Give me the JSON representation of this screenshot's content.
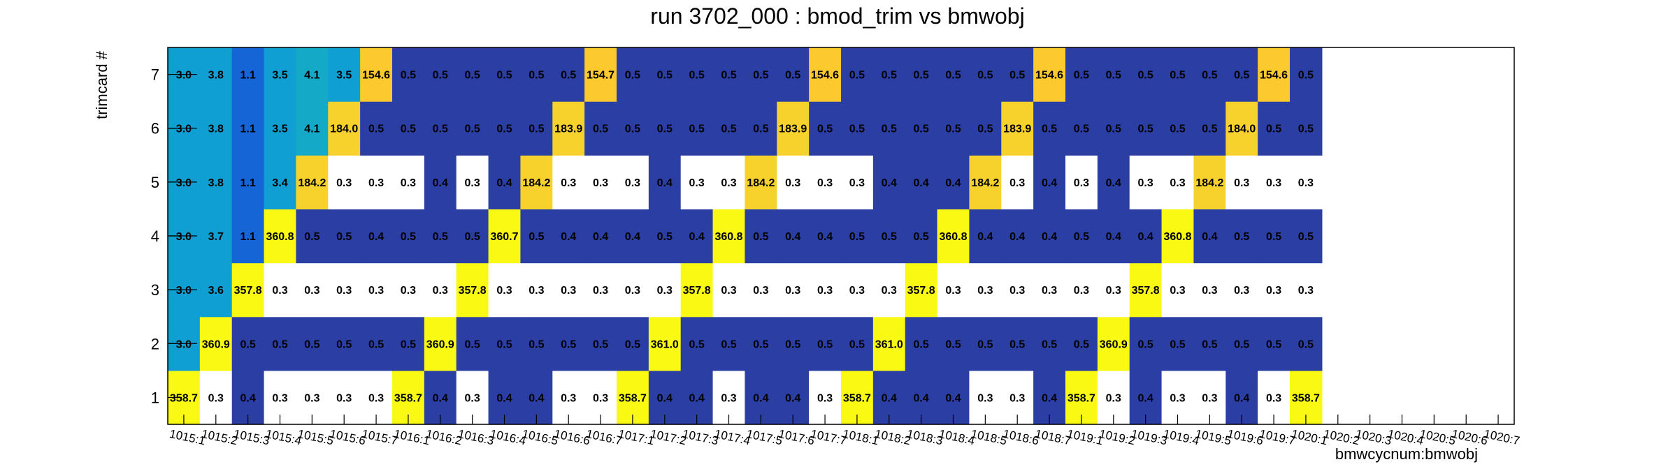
{
  "chart_data": {
    "type": "heatmap",
    "title": "run 3702_000 : bmod_trim vs bmwobj",
    "xlabel": "bmwcycnum:bmwobj",
    "ylabel": "trimcard #",
    "x_categories": [
      "1015:1",
      "1015:2",
      "1015:3",
      "1015:4",
      "1015:5",
      "1015:6",
      "1015:7",
      "1016:1",
      "1016:2",
      "1016:3",
      "1016:4",
      "1016:5",
      "1016:6",
      "1016:7",
      "1017:1",
      "1017:2",
      "1017:3",
      "1017:4",
      "1017:5",
      "1017:6",
      "1017:7",
      "1018:1",
      "1018:2",
      "1018:3",
      "1018:4",
      "1018:5",
      "1018:6",
      "1018:7",
      "1019:1",
      "1019:2",
      "1019:3",
      "1019:4",
      "1019:5",
      "1019:6",
      "1019:7",
      "1020:1",
      "1020:2",
      "1020:3",
      "1020:4",
      "1020:5",
      "1020:6",
      "1020:7"
    ],
    "y_categories": [
      "1",
      "2",
      "3",
      "4",
      "5",
      "6",
      "7"
    ],
    "rows": [
      {
        "y": "1",
        "values": [
          358.7,
          0.3,
          0.4,
          0.3,
          0.3,
          0.3,
          0.3,
          358.7,
          0.4,
          0.3,
          0.4,
          0.4,
          0.3,
          0.3,
          358.7,
          0.4,
          0.4,
          0.3,
          0.4,
          0.4,
          0.3,
          358.7,
          0.4,
          0.4,
          0.4,
          0.3,
          0.3,
          0.4,
          358.7,
          0.3,
          0.4,
          0.3,
          0.3,
          0.4,
          0.3,
          358.7,
          null,
          null,
          null,
          null,
          null,
          null
        ]
      },
      {
        "y": "2",
        "values": [
          3.0,
          360.9,
          0.5,
          0.5,
          0.5,
          0.5,
          0.5,
          0.5,
          360.9,
          0.5,
          0.5,
          0.5,
          0.5,
          0.5,
          0.5,
          361.0,
          0.5,
          0.5,
          0.5,
          0.5,
          0.5,
          0.5,
          361.0,
          0.5,
          0.5,
          0.5,
          0.5,
          0.5,
          0.5,
          360.9,
          0.5,
          0.5,
          0.5,
          0.5,
          0.5,
          0.5,
          null,
          null,
          null,
          null,
          null,
          null
        ]
      },
      {
        "y": "3",
        "values": [
          3.0,
          3.6,
          357.8,
          0.3,
          0.3,
          0.3,
          0.3,
          0.3,
          0.3,
          357.8,
          0.3,
          0.3,
          0.3,
          0.3,
          0.3,
          0.3,
          357.8,
          0.3,
          0.3,
          0.3,
          0.3,
          0.3,
          0.3,
          357.8,
          0.3,
          0.3,
          0.3,
          0.3,
          0.3,
          0.3,
          357.8,
          0.3,
          0.3,
          0.3,
          0.3,
          0.3,
          null,
          null,
          null,
          null,
          null,
          null
        ]
      },
      {
        "y": "4",
        "values": [
          3.0,
          3.7,
          1.1,
          360.8,
          0.5,
          0.5,
          0.4,
          0.5,
          0.5,
          0.5,
          360.7,
          0.5,
          0.4,
          0.4,
          0.4,
          0.5,
          0.4,
          360.8,
          0.5,
          0.4,
          0.4,
          0.5,
          0.5,
          0.5,
          360.8,
          0.4,
          0.4,
          0.4,
          0.5,
          0.4,
          0.4,
          360.8,
          0.4,
          0.5,
          0.5,
          0.5,
          null,
          null,
          null,
          null,
          null,
          null
        ]
      },
      {
        "y": "5",
        "values": [
          3.0,
          3.8,
          1.1,
          3.4,
          184.2,
          0.3,
          0.3,
          0.3,
          0.4,
          0.3,
          0.4,
          184.2,
          0.3,
          0.3,
          0.3,
          0.4,
          0.3,
          0.3,
          184.2,
          0.3,
          0.3,
          0.3,
          0.4,
          0.4,
          0.4,
          184.2,
          0.3,
          0.4,
          0.3,
          0.4,
          0.3,
          0.3,
          184.2,
          0.3,
          0.3,
          0.3,
          null,
          null,
          null,
          null,
          null,
          null
        ]
      },
      {
        "y": "6",
        "values": [
          3.0,
          3.8,
          1.1,
          3.5,
          4.1,
          184.0,
          0.5,
          0.5,
          0.5,
          0.5,
          0.5,
          0.5,
          183.9,
          0.5,
          0.5,
          0.5,
          0.5,
          0.5,
          0.5,
          183.9,
          0.5,
          0.5,
          0.5,
          0.5,
          0.5,
          0.5,
          183.9,
          0.5,
          0.5,
          0.5,
          0.5,
          0.5,
          0.5,
          184.0,
          0.5,
          0.5,
          null,
          null,
          null,
          null,
          null,
          null
        ]
      },
      {
        "y": "7",
        "values": [
          3.0,
          3.8,
          1.1,
          3.5,
          4.1,
          3.5,
          154.6,
          0.5,
          0.5,
          0.5,
          0.5,
          0.5,
          0.5,
          154.7,
          0.5,
          0.5,
          0.5,
          0.5,
          0.5,
          0.5,
          154.6,
          0.5,
          0.5,
          0.5,
          0.5,
          0.5,
          0.5,
          154.6,
          0.5,
          0.5,
          0.5,
          0.5,
          0.5,
          0.5,
          154.6,
          0.5,
          null,
          null,
          null,
          null,
          null,
          null
        ]
      }
    ],
    "grid": false,
    "legend": "none",
    "colors": {
      "peak_154": "#fcca2e",
      "peak_184": "#f7d12c",
      "peak_358": "#f9f913",
      "val_3_4": "#109fd2",
      "val_4_1": "#14a9c6",
      "val_1_1": "#1665d6",
      "val_0_5": "#2a3ea4",
      "val_0_4": "#2a3ea4",
      "val_0_3": "#ffffff"
    }
  }
}
